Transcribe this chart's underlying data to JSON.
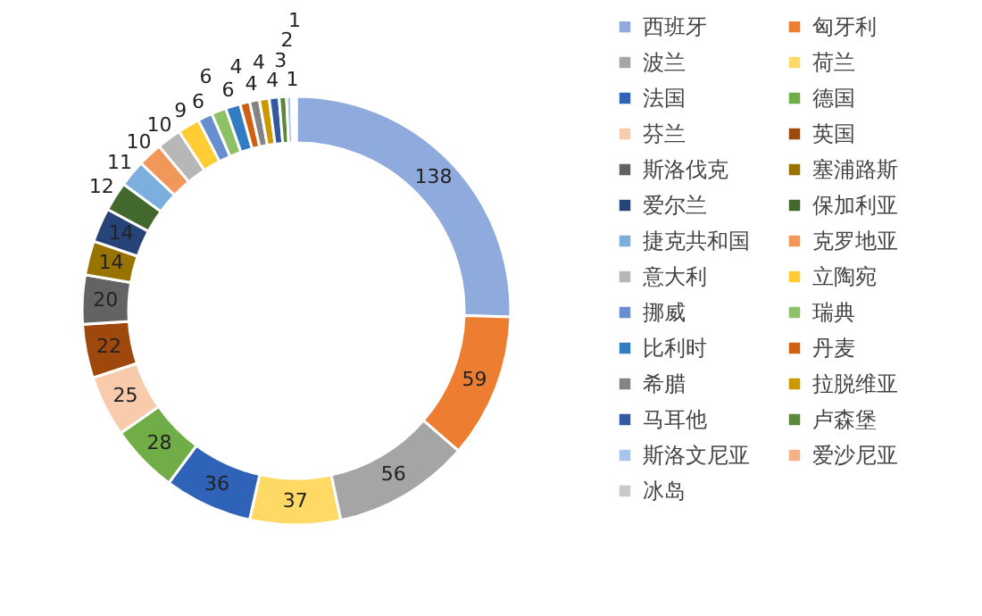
{
  "chart_data": {
    "type": "donut",
    "categories": [
      "西班牙",
      "匈牙利",
      "波兰",
      "荷兰",
      "法国",
      "德国",
      "芬兰",
      "英国",
      "斯洛伐克",
      "塞浦路斯",
      "爱尔兰",
      "保加利亚",
      "捷克共和国",
      "克罗地亚",
      "意大利",
      "立陶宛",
      "挪威",
      "瑞典",
      "比利时",
      "丹麦",
      "希腊",
      "拉脱维亚",
      "马耳他",
      "卢森堡",
      "斯洛文尼亚",
      "爱沙尼亚",
      "冰岛"
    ],
    "values": [
      138,
      59,
      56,
      37,
      36,
      28,
      25,
      22,
      20,
      14,
      14,
      12,
      11,
      10,
      10,
      9,
      6,
      6,
      6,
      4,
      4,
      4,
      4,
      3,
      2,
      1,
      1
    ],
    "colors": [
      "#8faadc",
      "#ed7d31",
      "#a5a5a5",
      "#ffd966",
      "#2f63b8",
      "#70ad47",
      "#f8cbad",
      "#9e480e",
      "#636363",
      "#997300",
      "#264478",
      "#43682b",
      "#7cafdd",
      "#f1975a",
      "#b7b7b7",
      "#ffcd33",
      "#698ed0",
      "#8cc168",
      "#327dc2",
      "#d26012",
      "#848484",
      "#cc9a00",
      "#335aa1",
      "#5a8a39",
      "#a9c4eb",
      "#f4b183",
      "#c9c9c9"
    ],
    "data_labels": true,
    "legend": "right"
  }
}
